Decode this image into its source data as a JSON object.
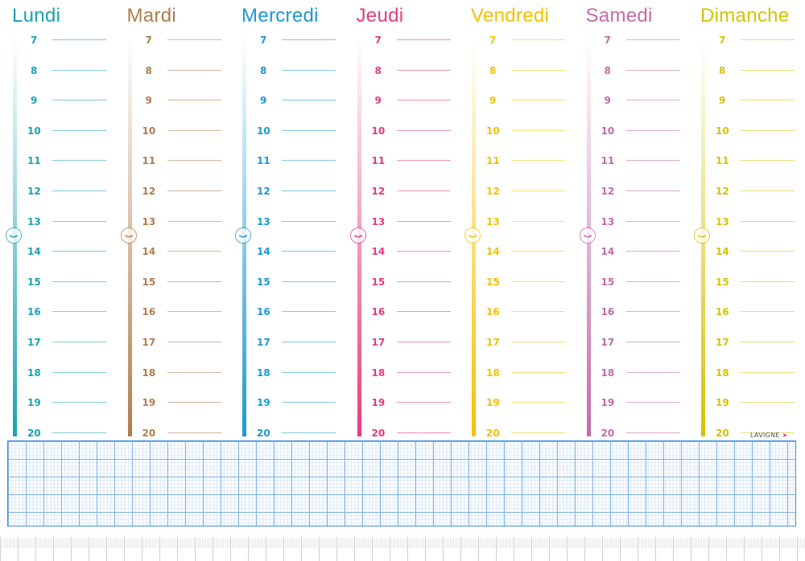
{
  "days": [
    {
      "name": "Lundi",
      "color": "#1aa3b0"
    },
    {
      "name": "Mardi",
      "color": "#b27c4c"
    },
    {
      "name": "Mercredi",
      "color": "#1c98d4"
    },
    {
      "name": "Jeudi",
      "color": "#e53a7d"
    },
    {
      "name": "Vendredi",
      "color": "#f2c200"
    },
    {
      "name": "Samedi",
      "color": "#c46aa6"
    },
    {
      "name": "Dimanche",
      "color": "#d6c200"
    }
  ],
  "hours": [
    "7",
    "8",
    "9",
    "10",
    "11",
    "12",
    "13",
    "14",
    "15",
    "16",
    "17",
    "18",
    "19",
    "20"
  ],
  "brand": {
    "logo": "LAVIGNE",
    "logo_icon": "arrow-icon"
  },
  "notes_grid_color": "#3d8ede"
}
